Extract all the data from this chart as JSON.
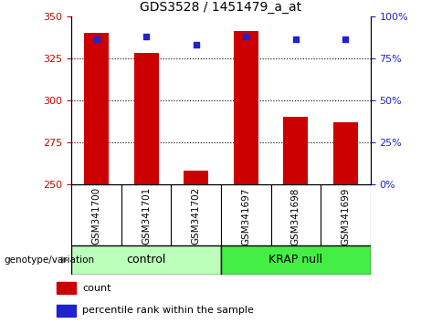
{
  "title": "GDS3528 / 1451479_a_at",
  "categories": [
    "GSM341700",
    "GSM341701",
    "GSM341702",
    "GSM341697",
    "GSM341698",
    "GSM341699"
  ],
  "bar_values": [
    340,
    328,
    258,
    341,
    290,
    287
  ],
  "bar_baseline": 250,
  "blue_values": [
    86,
    88,
    83,
    88,
    86,
    86
  ],
  "bar_color": "#cc0000",
  "blue_color": "#2222cc",
  "ylim_left": [
    250,
    350
  ],
  "ylim_right": [
    0,
    100
  ],
  "yticks_left": [
    250,
    275,
    300,
    325,
    350
  ],
  "yticks_right": [
    0,
    25,
    50,
    75,
    100
  ],
  "grid_lines": [
    275,
    300,
    325
  ],
  "control_label": "control",
  "krap_label": "KRAP null",
  "genotype_label": "genotype/variation",
  "legend_count": "count",
  "legend_percentile": "percentile rank within the sample",
  "control_color": "#bbffbb",
  "krap_color": "#44ee44",
  "left_axis_color": "#cc0000",
  "right_axis_color": "#2222cc",
  "background_color": "#ffffff",
  "bar_width": 0.5,
  "tick_area_color": "#cccccc"
}
